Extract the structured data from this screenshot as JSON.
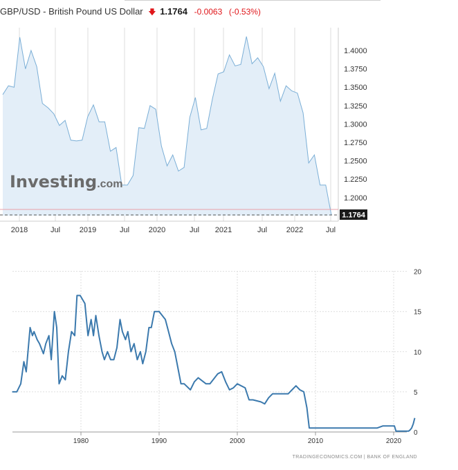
{
  "header": {
    "name": "GBP/USD - British Pound US Dollar",
    "arrow": "🡇",
    "price": "1.1764",
    "change": "-0.0063",
    "change_pct": "(-0.53%)"
  },
  "watermark": {
    "brand": "Investing",
    "suffix": ".com"
  },
  "source": "TRADINGECONOMICS.COM | BANK OF ENGLAND",
  "colors": {
    "line1": "#7aaed6",
    "fill1": "#e3eef8",
    "line2": "#3b79ad",
    "grid": "#dddddd",
    "down": "#e0161a",
    "last_label_bg": "#1a1a1a"
  },
  "chart_data": [
    {
      "type": "area",
      "title": "GBP/USD - British Pound US Dollar",
      "xlabel": "",
      "ylabel": "",
      "x_ticks": [
        "2018",
        "Jul",
        "2019",
        "Jul",
        "2020",
        "Jul",
        "2021",
        "Jul",
        "2022",
        "Jul"
      ],
      "y_ticks": [
        "1.4000",
        "1.3750",
        "1.3500",
        "1.3250",
        "1.3000",
        "1.2750",
        "1.2500",
        "1.2250",
        "1.2000"
      ],
      "ylim": [
        1.175,
        1.42
      ],
      "last_value_label": "1.1764",
      "series": [
        {
          "values": [
            1.34,
            1.352,
            1.35,
            1.418,
            1.375,
            1.4,
            1.378,
            1.328,
            1.322,
            1.314,
            1.298,
            1.305,
            1.278,
            1.277,
            1.278,
            1.31,
            1.326,
            1.303,
            1.303,
            1.263,
            1.268,
            1.217,
            1.217,
            1.23,
            1.295,
            1.294,
            1.325,
            1.32,
            1.27,
            1.243,
            1.258,
            1.236,
            1.241,
            1.309,
            1.336,
            1.292,
            1.294,
            1.334,
            1.368,
            1.371,
            1.394,
            1.379,
            1.381,
            1.419,
            1.382,
            1.39,
            1.378,
            1.348,
            1.369,
            1.331,
            1.352,
            1.345,
            1.342,
            1.315,
            1.247,
            1.258,
            1.217,
            1.217,
            1.176
          ]
        }
      ]
    },
    {
      "type": "line",
      "title": "",
      "xlabel": "",
      "ylabel": "",
      "x_ticks": [
        "1980",
        "1990",
        "2000",
        "2010",
        "2020"
      ],
      "y_ticks": [
        "0",
        "5",
        "10",
        "15",
        "20"
      ],
      "ylim": [
        0,
        20
      ],
      "xlim": [
        1971,
        2023
      ],
      "series": [
        {
          "x": [
            1971.2,
            1971.8,
            1972.3,
            1972.7,
            1973.0,
            1973.5,
            1973.8,
            1974.0,
            1974.4,
            1974.7,
            1975.2,
            1975.5,
            1975.9,
            1976.2,
            1976.6,
            1976.9,
            1977.2,
            1977.6,
            1978.0,
            1978.4,
            1978.8,
            1979.2,
            1979.5,
            1979.9,
            1980.5,
            1980.9,
            1981.3,
            1981.6,
            1981.9,
            1982.3,
            1982.7,
            1983.0,
            1983.4,
            1983.8,
            1984.2,
            1984.6,
            1985.0,
            1985.3,
            1985.7,
            1986.0,
            1986.4,
            1986.8,
            1987.2,
            1987.6,
            1987.9,
            1988.3,
            1988.7,
            1989.0,
            1989.4,
            1990.0,
            1990.8,
            1991.2,
            1991.6,
            1992.0,
            1992.4,
            1992.8,
            1993.2,
            1994.0,
            1994.5,
            1995.0,
            1996.0,
            1996.5,
            1997.5,
            1998.0,
            1998.5,
            1999.0,
            1999.5,
            2000.0,
            2001.0,
            2001.5,
            2002.0,
            2003.0,
            2003.5,
            2004.0,
            2004.5,
            2005.0,
            2006.5,
            2007.0,
            2007.5,
            2008.0,
            2008.5,
            2008.9,
            2009.2,
            2012.0,
            2016.5,
            2017.9,
            2018.6,
            2020.1,
            2020.3,
            2021.9,
            2022.1,
            2022.3,
            2022.5,
            2022.7
          ],
          "values": [
            5.0,
            5.0,
            6.0,
            8.75,
            7.5,
            13.0,
            12.0,
            12.5,
            11.5,
            11.0,
            9.75,
            11.0,
            12.0,
            9.0,
            15.0,
            13.0,
            6.0,
            7.0,
            6.5,
            10.0,
            12.5,
            12.0,
            17.0,
            17.0,
            16.0,
            12.0,
            14.0,
            12.0,
            14.5,
            12.0,
            10.0,
            9.0,
            10.0,
            9.0,
            9.0,
            10.5,
            14.0,
            12.5,
            11.5,
            12.5,
            10.0,
            11.0,
            9.0,
            10.0,
            8.5,
            10.0,
            13.0,
            13.0,
            15.0,
            15.0,
            14.0,
            12.5,
            11.0,
            10.0,
            8.0,
            6.0,
            6.0,
            5.25,
            6.25,
            6.75,
            6.0,
            6.0,
            7.25,
            7.5,
            6.25,
            5.25,
            5.5,
            6.0,
            5.5,
            4.0,
            4.0,
            3.75,
            3.5,
            4.25,
            4.75,
            4.75,
            4.75,
            5.25,
            5.75,
            5.25,
            5.0,
            3.0,
            0.5,
            0.5,
            0.5,
            0.5,
            0.75,
            0.75,
            0.1,
            0.1,
            0.25,
            0.5,
            1.0,
            1.75
          ]
        }
      ]
    }
  ]
}
